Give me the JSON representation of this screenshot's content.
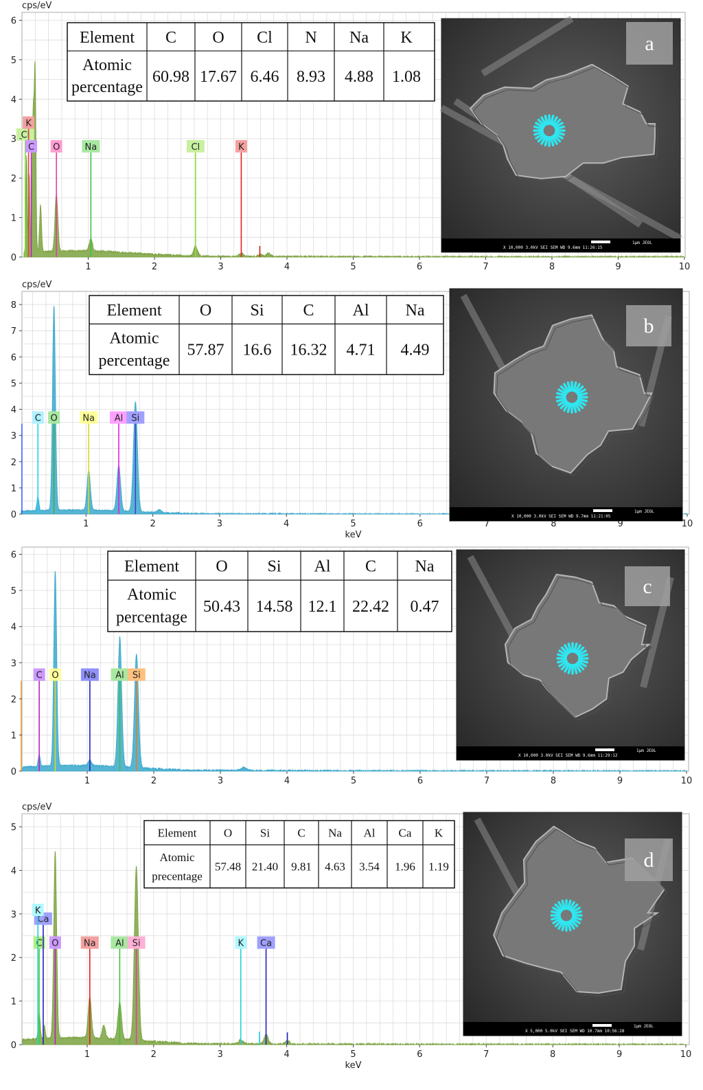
{
  "chart_data": [
    {
      "type": "line",
      "panel_label": "a",
      "ylabel": "cps/eV",
      "xlabel": "",
      "xlim": [
        0,
        10
      ],
      "ylim": [
        0,
        6.2
      ],
      "xticks": [
        "1",
        "2",
        "3",
        "4",
        "5",
        "6",
        "7",
        "8",
        "9",
        "10"
      ],
      "yticks": [
        "0",
        "1",
        "2",
        "3",
        "4",
        "5",
        "6"
      ],
      "series_color": "#7ba23f",
      "peaks": [
        {
          "x": 0.07,
          "y": 2.45,
          "w": 0.01
        },
        {
          "x": 0.11,
          "y": 2.0,
          "w": 0.01
        },
        {
          "x": 0.17,
          "y": 3.6,
          "w": 0.016
        },
        {
          "x": 0.2,
          "y": 4.1,
          "w": 0.012
        },
        {
          "x": 0.28,
          "y": 1.2,
          "w": 0.015
        },
        {
          "x": 0.52,
          "y": 1.45,
          "w": 0.022
        },
        {
          "x": 1.04,
          "y": 0.3,
          "w": 0.025
        },
        {
          "x": 2.62,
          "y": 0.25,
          "w": 0.03
        },
        {
          "x": 3.31,
          "y": 0.08,
          "w": 0.03
        },
        {
          "x": 3.59,
          "y": 0.05,
          "w": 0.03
        },
        {
          "x": 3.72,
          "y": 0.08,
          "w": 0.03
        }
      ],
      "element_lines": [
        {
          "label": "Cl",
          "x": 0.05,
          "top": 2.95,
          "color": "#7ddc3a",
          "label_color": "#c8f0a0"
        },
        {
          "label": "K",
          "x": 0.1,
          "top": 3.25,
          "color": "#e04040",
          "label_color": "#f4a0a0"
        },
        {
          "label": "C",
          "x": 0.14,
          "top": 2.65,
          "color": "#c020c0",
          "label_color": "#cc99ff"
        },
        {
          "label": "O",
          "x": 0.52,
          "top": 2.65,
          "color": "#e040a0",
          "label_color": "#ff9ed2"
        },
        {
          "label": "Na",
          "x": 1.04,
          "top": 2.65,
          "color": "#40c040",
          "label_color": "#a8e8a0"
        },
        {
          "label": "Cl",
          "x": 2.62,
          "top": 2.65,
          "color": "#8fdd40",
          "label_color": "#c8f0a0"
        },
        {
          "label": "K",
          "x": 3.31,
          "top": 2.65,
          "color": "#e02020",
          "label_color": "#f4a0a0"
        }
      ],
      "extra_lines": [
        {
          "x": 3.59,
          "top": 0.28,
          "color": "#e02020"
        }
      ],
      "table": {
        "header": [
          "Element",
          "C",
          "O",
          "Cl",
          "N",
          "Na",
          "K"
        ],
        "row_label": [
          "Atomic",
          "percentage"
        ],
        "values": [
          "60.98",
          "17.67",
          "6.46",
          "8.93",
          "4.88",
          "1.08"
        ]
      },
      "sem_info": "X 10,000    3.0kV  SEI          SEM    WD 9.6mm  11:26:15",
      "sem_scale": "1µm   JEOL"
    },
    {
      "type": "line",
      "panel_label": "b",
      "ylabel": "cps/eV",
      "xlabel": "keV",
      "xlim": [
        0,
        10
      ],
      "ylim": [
        0,
        8.5
      ],
      "xticks": [
        "1",
        "2",
        "3",
        "4",
        "5",
        "6",
        "7",
        "8",
        "9",
        "10"
      ],
      "yticks": [
        "0",
        "1",
        "2",
        "3",
        "4",
        "5",
        "6",
        "7",
        "8"
      ],
      "series_color": "#3aa8cc",
      "peaks": [
        {
          "x": 0.28,
          "y": 0.55,
          "w": 0.015
        },
        {
          "x": 0.52,
          "y": 7.8,
          "w": 0.022
        },
        {
          "x": 1.04,
          "y": 1.5,
          "w": 0.025
        },
        {
          "x": 1.49,
          "y": 1.75,
          "w": 0.028
        },
        {
          "x": 1.74,
          "y": 4.2,
          "w": 0.03
        },
        {
          "x": 2.1,
          "y": 0.1,
          "w": 0.03
        }
      ],
      "element_lines": [
        {
          "label": "C",
          "x": 0.28,
          "top": 3.45,
          "color": "#20d0f0",
          "label_color": "#b0f0ff"
        },
        {
          "label": "O",
          "x": 0.52,
          "top": 3.45,
          "color": "#40b040",
          "label_color": "#a8e8a0"
        },
        {
          "label": "Na",
          "x": 1.04,
          "top": 3.45,
          "color": "#d8d820",
          "label_color": "#ffff99"
        },
        {
          "label": "Al",
          "x": 1.49,
          "top": 3.45,
          "color": "#e020e0",
          "label_color": "#ffa0ff"
        },
        {
          "label": "Si",
          "x": 1.74,
          "top": 3.45,
          "color": "#4040d0",
          "label_color": "#a0a0ff"
        }
      ],
      "extra_lines": [
        {
          "x": 0.04,
          "top": 3.45,
          "color": "#4060ff"
        }
      ],
      "table": {
        "header": [
          "Element",
          "O",
          "Si",
          "C",
          "Al",
          "Na"
        ],
        "row_label": [
          "Atomic",
          "percentage"
        ],
        "values": [
          "57.87",
          "16.6",
          "16.32",
          "4.71",
          "4.49"
        ]
      },
      "sem_info": "X 10,000    3.0kV  SEI          SEM    WD 9.7mm  11:21:05",
      "sem_scale": "1µm   JEOL"
    },
    {
      "type": "line",
      "panel_label": "c",
      "ylabel": "",
      "xlabel": "",
      "xlim": [
        0,
        10
      ],
      "ylim": [
        0,
        6.2
      ],
      "xticks": [
        "1",
        "2",
        "3",
        "4",
        "5",
        "6",
        "7",
        "8",
        "9",
        "10"
      ],
      "yticks": [
        "0",
        "1",
        "2",
        "3",
        "4",
        "5",
        "6"
      ],
      "series_color": "#3aa8cc",
      "peaks": [
        {
          "x": 0.28,
          "y": 0.35,
          "w": 0.015
        },
        {
          "x": 0.52,
          "y": 5.4,
          "w": 0.022
        },
        {
          "x": 1.04,
          "y": 0.15,
          "w": 0.025
        },
        {
          "x": 1.49,
          "y": 3.6,
          "w": 0.028
        },
        {
          "x": 1.74,
          "y": 3.15,
          "w": 0.03
        },
        {
          "x": 3.35,
          "y": 0.08,
          "w": 0.04
        }
      ],
      "element_lines": [
        {
          "label": "C",
          "x": 0.28,
          "top": 2.5,
          "color": "#c020c0",
          "label_color": "#cc99ff"
        },
        {
          "label": "O",
          "x": 0.52,
          "top": 2.5,
          "color": "#d8d820",
          "label_color": "#ffff99"
        },
        {
          "label": "Na",
          "x": 1.04,
          "top": 2.5,
          "color": "#2020c0",
          "label_color": "#9090ff"
        },
        {
          "label": "Al",
          "x": 1.49,
          "top": 2.5,
          "color": "#40c040",
          "label_color": "#a8e8a0"
        },
        {
          "label": "Si",
          "x": 1.74,
          "top": 2.5,
          "color": "#e08020",
          "label_color": "#ffc080"
        }
      ],
      "extra_lines": [
        {
          "x": 0.01,
          "top": 2.5,
          "color": "#f0a030"
        }
      ],
      "table": {
        "header": [
          "Element",
          "O",
          "Si",
          "Al",
          "C",
          "Na"
        ],
        "row_label": [
          "Atomic",
          "percentage"
        ],
        "values": [
          "50.43",
          "14.58",
          "12.1",
          "22.42",
          "0.47"
        ]
      },
      "sem_info": "X 10,000    3.0kV  SEI          SEM    WD 9.6mm  11:29:12",
      "sem_scale": "1µm   JEOL"
    },
    {
      "type": "line",
      "panel_label": "d",
      "ylabel": "cps/eV",
      "xlabel": "keV",
      "xlim": [
        0,
        10
      ],
      "ylim": [
        0,
        5.3
      ],
      "xticks": [
        "1",
        "2",
        "3",
        "4",
        "5",
        "6",
        "7",
        "8",
        "9",
        "10"
      ],
      "yticks": [
        "0",
        "1",
        "2",
        "3",
        "4",
        "5"
      ],
      "series_color": "#7ba23f",
      "peaks": [
        {
          "x": 0.28,
          "y": 0.6,
          "w": 0.015
        },
        {
          "x": 0.36,
          "y": 0.3,
          "w": 0.012
        },
        {
          "x": 0.52,
          "y": 4.3,
          "w": 0.022
        },
        {
          "x": 1.04,
          "y": 0.95,
          "w": 0.025
        },
        {
          "x": 1.25,
          "y": 0.3,
          "w": 0.025
        },
        {
          "x": 1.49,
          "y": 0.85,
          "w": 0.028
        },
        {
          "x": 1.74,
          "y": 4.0,
          "w": 0.03
        },
        {
          "x": 3.31,
          "y": 0.1,
          "w": 0.03
        },
        {
          "x": 3.69,
          "y": 0.22,
          "w": 0.03
        },
        {
          "x": 4.01,
          "y": 0.08,
          "w": 0.03
        }
      ],
      "element_lines": [
        {
          "label": "C",
          "x": 0.28,
          "top": 2.2,
          "color": "#40d040",
          "label_color": "#b0f080"
        },
        {
          "label": "Ca",
          "x": 0.34,
          "top": 2.75,
          "color": "#2020c0",
          "label_color": "#a0a0ff"
        },
        {
          "label": "K",
          "x": 0.26,
          "top": 2.95,
          "color": "#20d0e0",
          "label_color": "#b0f8ff"
        },
        {
          "label": "O",
          "x": 0.52,
          "top": 2.2,
          "color": "#c020c0",
          "label_color": "#cc99ff"
        },
        {
          "label": "Na",
          "x": 1.04,
          "top": 2.2,
          "color": "#e02020",
          "label_color": "#f4a0a0"
        },
        {
          "label": "Al",
          "x": 1.49,
          "top": 2.2,
          "color": "#40c040",
          "label_color": "#a8e8a0"
        },
        {
          "label": "Si",
          "x": 1.74,
          "top": 2.2,
          "color": "#e040a0",
          "label_color": "#ffb0d8"
        },
        {
          "label": "K",
          "x": 3.31,
          "top": 2.2,
          "color": "#20d0e0",
          "label_color": "#b0f8ff"
        },
        {
          "label": "Ca",
          "x": 3.69,
          "top": 2.2,
          "color": "#2020c0",
          "label_color": "#a0a0ff"
        }
      ],
      "extra_lines": [
        {
          "x": 4.01,
          "top": 0.28,
          "color": "#2020c0"
        },
        {
          "x": 3.59,
          "top": 0.3,
          "color": "#20d0e0"
        }
      ],
      "table": {
        "header": [
          "Element",
          "O",
          "Si",
          "C",
          "Na",
          "Al",
          "Ca",
          "K"
        ],
        "row_label": [
          "Atomic",
          "precentage"
        ],
        "values": [
          "57.48",
          "21.40",
          "9.81",
          "4.63",
          "3.54",
          "1.96",
          "1.19"
        ]
      },
      "sem_info": "X 5,000    5.0kV  SEI          SEM    WD 10.7mm  10:56:28",
      "sem_scale": "1µm   JEOL"
    }
  ]
}
